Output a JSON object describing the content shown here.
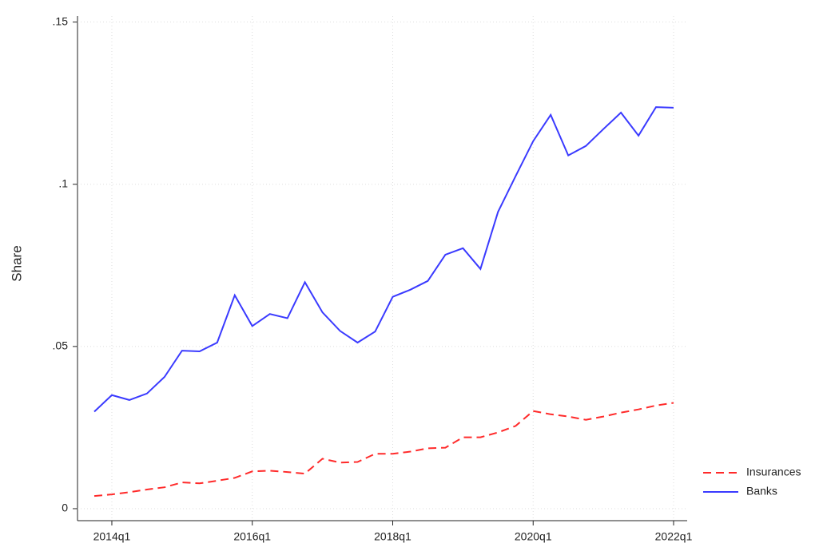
{
  "chart_data": {
    "type": "line",
    "y_label": "Share",
    "categories": [
      null,
      "2014q1",
      null,
      null,
      null,
      null,
      null,
      null,
      null,
      "2016q1",
      null,
      null,
      null,
      null,
      null,
      null,
      null,
      "2018q1",
      null,
      null,
      null,
      null,
      null,
      null,
      null,
      "2020q1",
      null,
      null,
      null,
      null,
      null,
      null,
      null,
      "2022q1"
    ],
    "series": [
      {
        "name": "Insurances",
        "color": "#ff2a2a",
        "style": "dashed",
        "values": [
          0.0039,
          0.0044,
          0.0051,
          0.0059,
          0.0066,
          0.0081,
          0.0078,
          0.0086,
          0.0095,
          0.0115,
          0.0117,
          0.0113,
          0.0108,
          0.0154,
          0.0142,
          0.0144,
          0.0169,
          0.0169,
          0.0176,
          0.0186,
          0.0188,
          0.022,
          0.022,
          0.0235,
          0.0255,
          0.0301,
          0.0291,
          0.0284,
          0.0274,
          0.0284,
          0.0296,
          0.0306,
          0.0318,
          0.0326
        ]
      },
      {
        "name": "Banks",
        "color": "#3a3aff",
        "style": "solid",
        "values": [
          0.0299,
          0.035,
          0.0335,
          0.0355,
          0.0406,
          0.0487,
          0.0485,
          0.0512,
          0.0658,
          0.0563,
          0.06,
          0.0587,
          0.0698,
          0.0605,
          0.0548,
          0.0512,
          0.0546,
          0.0653,
          0.0675,
          0.0702,
          0.0783,
          0.0803,
          0.0739,
          0.0915,
          0.1025,
          0.1133,
          0.1214,
          0.1089,
          0.1118,
          0.117,
          0.1221,
          0.115,
          0.1238,
          0.1236
        ]
      }
    ],
    "ylim": [
      -0.0037,
      0.1509
    ],
    "yticks": [
      0,
      {
        "value": 0.05,
        "label": ".05"
      },
      {
        "value": 0.1,
        "label": ".1"
      },
      {
        "value": 0.15,
        "label": ".15"
      }
    ],
    "grid": true,
    "legend": "bottom-right"
  }
}
